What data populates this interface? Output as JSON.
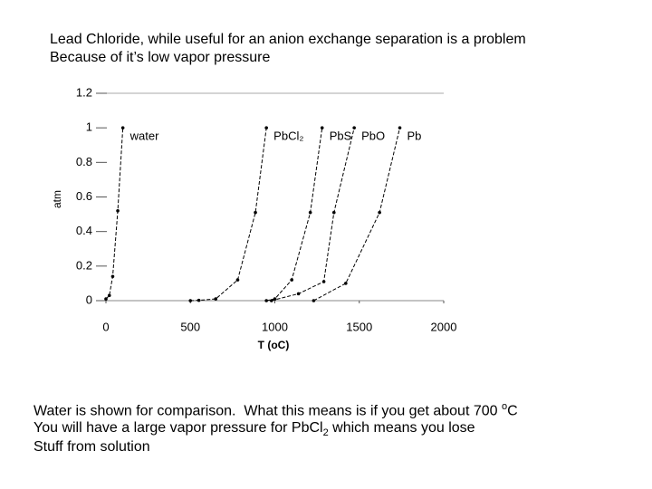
{
  "header": {
    "lines": [
      "Lead Chloride, while useful for an anion exchange separation is a problem",
      "Because of it’s low vapor pressure"
    ]
  },
  "chart_data": {
    "type": "line",
    "xlabel": "T (oC)",
    "ylabel": "atm",
    "xlim": [
      0,
      2000
    ],
    "xticks": [
      0,
      500,
      1000,
      1500,
      2000
    ],
    "ylim": [
      0,
      1.2
    ],
    "yticks": [
      0,
      0.2,
      0.4,
      0.6,
      0.8,
      1,
      1.2
    ],
    "color": "#000000",
    "series": [
      {
        "name": "water",
        "x": [
          0,
          20,
          40,
          70,
          100
        ],
        "values": [
          0.01,
          0.03,
          0.14,
          0.52,
          1.0
        ]
      },
      {
        "name": "PbCl₂",
        "x": [
          500,
          550,
          650,
          780,
          885,
          950
        ],
        "values": [
          0,
          0.002,
          0.01,
          0.12,
          0.51,
          1.0
        ]
      },
      {
        "name": "PbS",
        "x": [
          950,
          1000,
          1100,
          1210,
          1280
        ],
        "values": [
          0,
          0.01,
          0.12,
          0.51,
          1.0
        ]
      },
      {
        "name": "PbO",
        "x": [
          980,
          1140,
          1290,
          1350,
          1470
        ],
        "values": [
          0,
          0.04,
          0.11,
          0.51,
          1.0
        ]
      },
      {
        "name": "Pb",
        "x": [
          1230,
          1420,
          1620,
          1740
        ],
        "values": [
          0,
          0.1,
          0.51,
          1.0
        ]
      }
    ]
  },
  "footer": {
    "lines": [
      [
        {
          "text": "Water is shown for comparison.  What this means is if you get about 700 "
        },
        {
          "text": "o",
          "style": "sup"
        },
        {
          "text": "C"
        }
      ],
      [
        {
          "text": "You will have a large vapor pressure for PbCl"
        },
        {
          "text": "2",
          "style": "sub"
        },
        {
          "text": " which means you lose"
        }
      ],
      [
        {
          "text": "Stuff from solution"
        }
      ]
    ]
  }
}
